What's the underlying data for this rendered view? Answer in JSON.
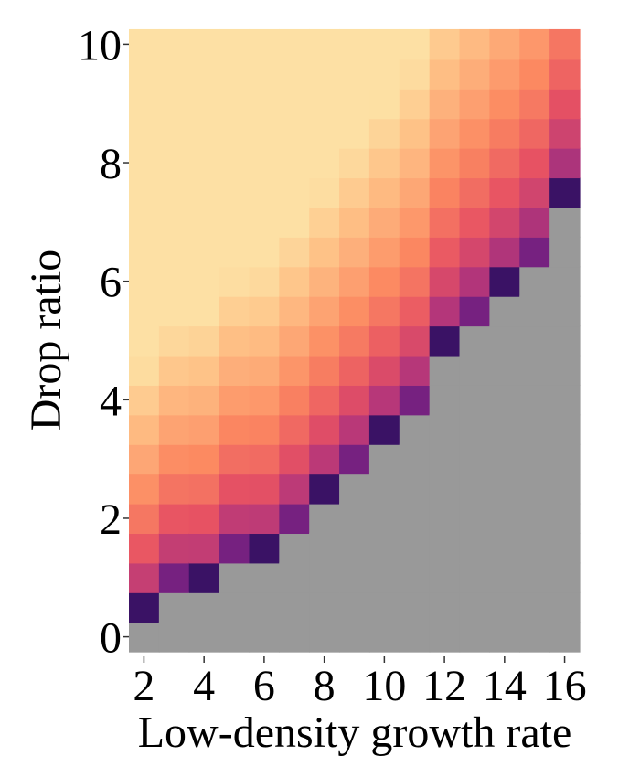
{
  "chart_data": {
    "type": "heatmap",
    "xlabel": "Low-density growth rate",
    "ylabel": "Drop ratio",
    "x_ticks": [
      2,
      4,
      6,
      8,
      10,
      12,
      14,
      16
    ],
    "y_ticks": [
      0,
      2,
      4,
      6,
      8,
      10
    ],
    "xlim": [
      1.5,
      16.5
    ],
    "ylim": [
      -0.33,
      10.33
    ],
    "columns": [
      2,
      3,
      4,
      5,
      6,
      7,
      8,
      9,
      10,
      11,
      12,
      13,
      14,
      15,
      16
    ],
    "rows": [
      0,
      0.5,
      1,
      1.5,
      2,
      2.5,
      3,
      3.5,
      4,
      4.5,
      5,
      5.5,
      6,
      6.5,
      7,
      7.5,
      8,
      8.5,
      9,
      9.5,
      10
    ],
    "boundary_row_index": [
      1,
      2,
      2,
      3,
      3,
      4,
      5,
      6,
      7,
      8,
      10,
      11,
      12,
      13,
      15
    ],
    "value_scale": "0 = dark purple (near boundary), 1 = light yellow (far from boundary)",
    "missing_color": "#999999",
    "colormap": [
      "#1d1147",
      "#51127c",
      "#822681",
      "#b73779",
      "#e75263",
      "#fc8961",
      "#fec287",
      "#fcfdbf"
    ]
  }
}
